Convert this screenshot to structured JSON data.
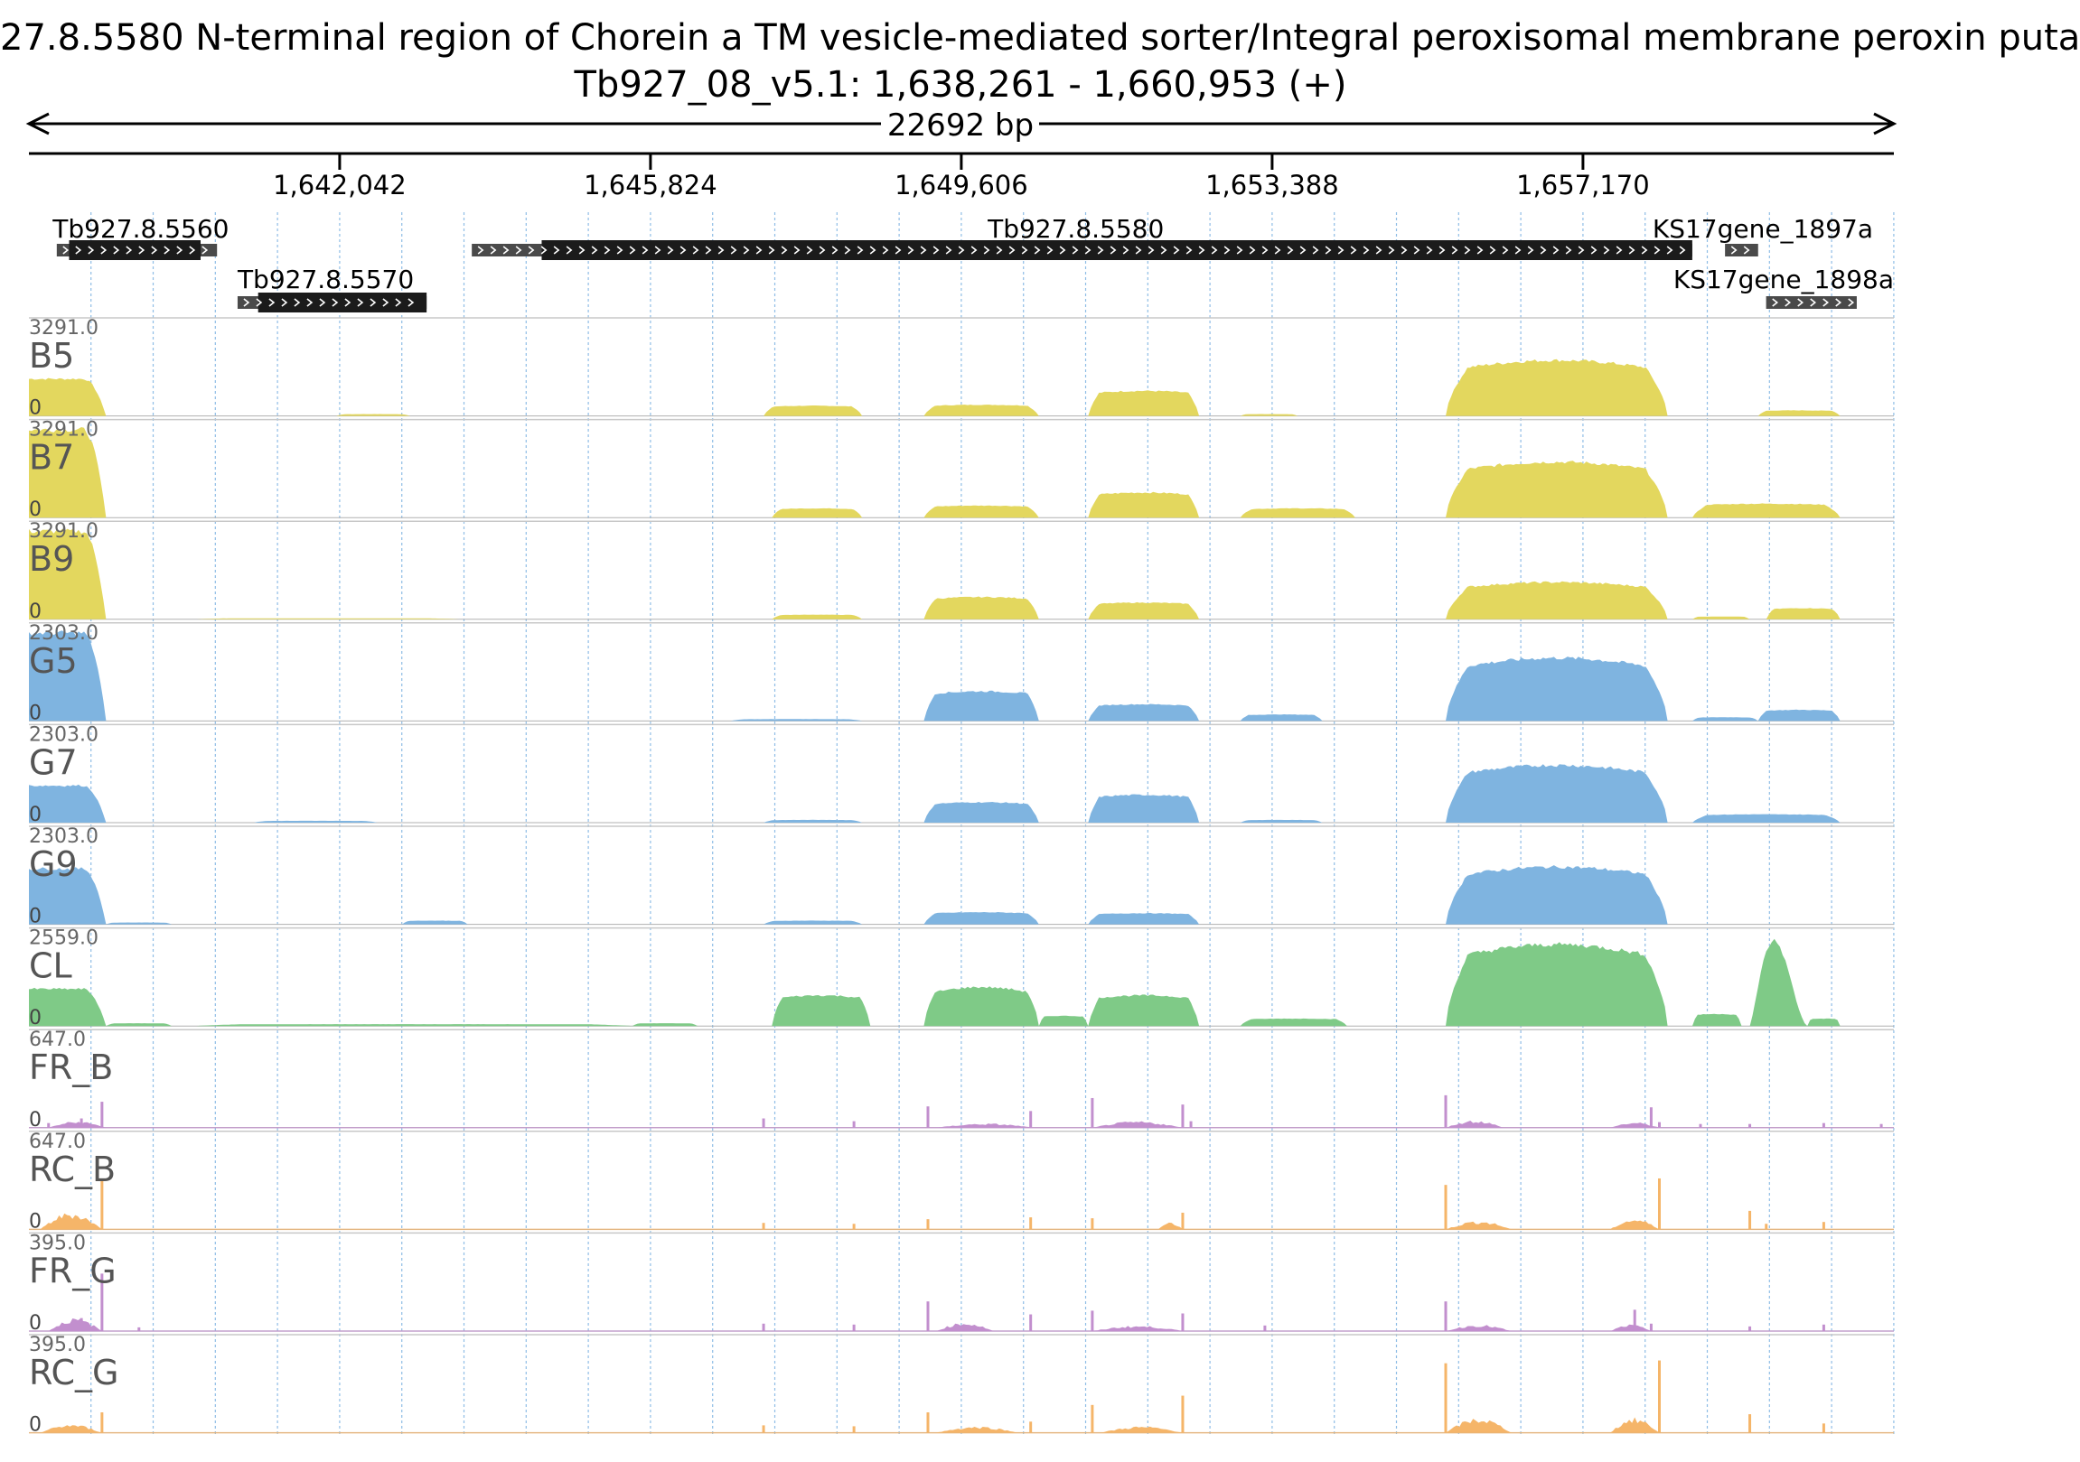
{
  "header": {
    "title": "27.8.5580  N-terminal region of Chorein  a TM vesicle-mediated sorter/Integral peroxisomal membrane peroxin  puta",
    "region": "Tb927_08_v5.1: 1,638,261 - 1,660,953 (+)",
    "span": "22692 bp"
  },
  "chart_data": {
    "type": "area",
    "xlim": [
      1638261,
      1660953
    ],
    "x_ticks": [
      {
        "value": 1642042,
        "label": "1,642,042"
      },
      {
        "value": 1645824,
        "label": "1,645,824"
      },
      {
        "value": 1649606,
        "label": "1,649,606"
      },
      {
        "value": 1653388,
        "label": "1,653,388"
      },
      {
        "value": 1657170,
        "label": "1,657,170"
      }
    ],
    "genes": [
      {
        "name": "Tb927.8.5560",
        "utr": [
          1638600,
          1640550
        ],
        "cds": [
          1638750,
          1640350
        ],
        "row": 0,
        "label_at": 1638550,
        "anchor": "start"
      },
      {
        "name": "Tb927.8.5570",
        "utr": [
          1640800,
          1643100
        ],
        "cds": [
          1641050,
          1643100
        ],
        "row": 1,
        "label_at": 1640800,
        "anchor": "start"
      },
      {
        "name": "Tb927.8.5580",
        "utr": [
          1643650,
          1658500
        ],
        "cds": [
          1644500,
          1658500
        ],
        "row": 0,
        "label_at": 1651000,
        "anchor": "middle"
      },
      {
        "name": "KS17gene_1897a",
        "utr": [
          1658900,
          1659300
        ],
        "cds": [
          1658900,
          1659300
        ],
        "row": 0,
        "label_at": 1660700,
        "anchor": "end"
      },
      {
        "name": "KS17gene_1898a",
        "utr": [
          1659400,
          1660500
        ],
        "cds": [
          1659400,
          1660500
        ],
        "row": 1,
        "label_at": 1660953,
        "anchor": "end"
      }
    ],
    "series": [
      {
        "name": "B5",
        "max_label": "3291.0",
        "min_label": "0",
        "color": "#e3d75e",
        "kind": "coverage",
        "blocks": [
          [
            1638261,
            1639200,
            0.4,
            "cap"
          ],
          [
            1642000,
            1642900,
            0.02,
            "flat"
          ],
          [
            1647200,
            1648400,
            0.11,
            "flat"
          ],
          [
            1649150,
            1650550,
            0.12,
            "flat"
          ],
          [
            1651150,
            1652500,
            0.27,
            "flat"
          ],
          [
            1653000,
            1653700,
            0.02,
            "flat"
          ],
          [
            1655500,
            1658200,
            0.6,
            "bump"
          ],
          [
            1659300,
            1660300,
            0.06,
            "flat"
          ]
        ]
      },
      {
        "name": "B7",
        "max_label": "3291.0",
        "min_label": "0",
        "color": "#e3d75e",
        "kind": "coverage",
        "blocks": [
          [
            1638261,
            1639200,
            0.95,
            "cap"
          ],
          [
            1647300,
            1648400,
            0.1,
            "flat"
          ],
          [
            1649150,
            1650550,
            0.13,
            "flat"
          ],
          [
            1651150,
            1652500,
            0.27,
            "flat"
          ],
          [
            1653000,
            1654400,
            0.1,
            "flat"
          ],
          [
            1655500,
            1658200,
            0.6,
            "bump"
          ],
          [
            1658500,
            1660300,
            0.15,
            "flat"
          ]
        ]
      },
      {
        "name": "B9",
        "max_label": "3291.0",
        "min_label": "0",
        "color": "#e3d75e",
        "kind": "coverage",
        "blocks": [
          [
            1638261,
            1639200,
            0.95,
            "cap"
          ],
          [
            1640300,
            1643500,
            0.01,
            "flat"
          ],
          [
            1647300,
            1648400,
            0.05,
            "flat"
          ],
          [
            1649150,
            1650550,
            0.24,
            "flat"
          ],
          [
            1651150,
            1652500,
            0.18,
            "flat"
          ],
          [
            1655500,
            1658200,
            0.4,
            "bump"
          ],
          [
            1658500,
            1659200,
            0.03,
            "flat"
          ],
          [
            1659400,
            1660300,
            0.12,
            "flat"
          ]
        ]
      },
      {
        "name": "G5",
        "max_label": "2303.0",
        "min_label": "0",
        "color": "#7fb4e0",
        "kind": "coverage",
        "blocks": [
          [
            1638261,
            1639200,
            0.95,
            "cap"
          ],
          [
            1646800,
            1648400,
            0.02,
            "flat"
          ],
          [
            1649150,
            1650550,
            0.32,
            "flat"
          ],
          [
            1651150,
            1652500,
            0.18,
            "flat"
          ],
          [
            1653000,
            1654000,
            0.07,
            "flat"
          ],
          [
            1655500,
            1658200,
            0.68,
            "bump"
          ],
          [
            1658500,
            1659300,
            0.04,
            "flat"
          ],
          [
            1659300,
            1660300,
            0.12,
            "flat"
          ]
        ]
      },
      {
        "name": "G7",
        "max_label": "2303.0",
        "min_label": "0",
        "color": "#7fb4e0",
        "kind": "coverage",
        "blocks": [
          [
            1638261,
            1639200,
            0.4,
            "cap"
          ],
          [
            1641000,
            1642500,
            0.02,
            "flat"
          ],
          [
            1647200,
            1648400,
            0.03,
            "flat"
          ],
          [
            1649150,
            1650550,
            0.22,
            "flat"
          ],
          [
            1651150,
            1652500,
            0.3,
            "flat"
          ],
          [
            1653000,
            1654000,
            0.03,
            "flat"
          ],
          [
            1655500,
            1658200,
            0.62,
            "bump"
          ],
          [
            1658500,
            1660300,
            0.09,
            "flat"
          ]
        ]
      },
      {
        "name": "G9",
        "max_label": "2303.0",
        "min_label": "0",
        "color": "#7fb4e0",
        "kind": "coverage",
        "blocks": [
          [
            1638261,
            1639200,
            0.6,
            "cap"
          ],
          [
            1639200,
            1640000,
            0.02,
            "flat"
          ],
          [
            1642800,
            1643600,
            0.04,
            "flat"
          ],
          [
            1647200,
            1648400,
            0.04,
            "flat"
          ],
          [
            1649150,
            1650550,
            0.13,
            "flat"
          ],
          [
            1651150,
            1652500,
            0.12,
            "flat"
          ],
          [
            1655500,
            1658200,
            0.62,
            "bump"
          ]
        ]
      },
      {
        "name": "CL",
        "max_label": "2559.0",
        "min_label": "0",
        "color": "#7fca87",
        "kind": "coverage",
        "blocks": [
          [
            1638261,
            1639200,
            0.4,
            "cap"
          ],
          [
            1639200,
            1640000,
            0.03,
            "flat"
          ],
          [
            1640300,
            1645600,
            0.02,
            "flat"
          ],
          [
            1645600,
            1646400,
            0.03,
            "flat"
          ],
          [
            1647300,
            1648500,
            0.33,
            "flat"
          ],
          [
            1649150,
            1650550,
            0.42,
            "bump"
          ],
          [
            1650550,
            1651150,
            0.11,
            "flat"
          ],
          [
            1651150,
            1652500,
            0.33,
            "flat"
          ],
          [
            1653000,
            1654300,
            0.08,
            "flat"
          ],
          [
            1655500,
            1658200,
            0.88,
            "bump"
          ],
          [
            1658500,
            1659100,
            0.13,
            "flat"
          ],
          [
            1659200,
            1659900,
            0.92,
            "peak"
          ],
          [
            1659900,
            1660300,
            0.08,
            "flat"
          ]
        ]
      },
      {
        "name": "FR_B",
        "max_label": "647.0",
        "min_label": "0",
        "color": "#c28fce",
        "kind": "spikes",
        "spikes": [
          [
            1638500,
            0.05
          ],
          [
            1638900,
            0.1
          ],
          [
            1639150,
            0.28
          ],
          [
            1647200,
            0.1
          ],
          [
            1648300,
            0.07
          ],
          [
            1649200,
            0.23
          ],
          [
            1650450,
            0.18
          ],
          [
            1651200,
            0.32
          ],
          [
            1652300,
            0.25
          ],
          [
            1652400,
            0.07
          ],
          [
            1655500,
            0.35
          ],
          [
            1658000,
            0.22
          ],
          [
            1658100,
            0.06
          ],
          [
            1658600,
            0.04
          ],
          [
            1659200,
            0.04
          ],
          [
            1660100,
            0.05
          ],
          [
            1660800,
            0.04
          ]
        ],
        "mounds": [
          [
            1638500,
            1639200,
            0.06
          ],
          [
            1649300,
            1650500,
            0.04
          ],
          [
            1651200,
            1652300,
            0.06
          ],
          [
            1655500,
            1656200,
            0.07
          ],
          [
            1657500,
            1658100,
            0.05
          ]
        ]
      },
      {
        "name": "RC_B",
        "max_label": "647.0",
        "min_label": "0",
        "color": "#f5b569",
        "kind": "spikes",
        "spikes": [
          [
            1639150,
            0.55
          ],
          [
            1647200,
            0.07
          ],
          [
            1648300,
            0.06
          ],
          [
            1649200,
            0.11
          ],
          [
            1650450,
            0.13
          ],
          [
            1651200,
            0.12
          ],
          [
            1652300,
            0.18
          ],
          [
            1655500,
            0.48
          ],
          [
            1658100,
            0.55
          ],
          [
            1659200,
            0.2
          ],
          [
            1659400,
            0.06
          ],
          [
            1660100,
            0.08
          ]
        ],
        "mounds": [
          [
            1638400,
            1639150,
            0.16
          ],
          [
            1655500,
            1656300,
            0.08
          ],
          [
            1657500,
            1658100,
            0.1
          ],
          [
            1652000,
            1652300,
            0.07
          ]
        ]
      },
      {
        "name": "FR_G",
        "max_label": "395.0",
        "min_label": "0",
        "color": "#c28fce",
        "kind": "spikes",
        "spikes": [
          [
            1638900,
            0.14
          ],
          [
            1639150,
            0.62
          ],
          [
            1639600,
            0.04
          ],
          [
            1647200,
            0.08
          ],
          [
            1648300,
            0.07
          ],
          [
            1649200,
            0.32
          ],
          [
            1650450,
            0.18
          ],
          [
            1651200,
            0.22
          ],
          [
            1652300,
            0.19
          ],
          [
            1653300,
            0.06
          ],
          [
            1655500,
            0.32
          ],
          [
            1657800,
            0.23
          ],
          [
            1658000,
            0.08
          ],
          [
            1659200,
            0.05
          ],
          [
            1660100,
            0.07
          ]
        ],
        "mounds": [
          [
            1638500,
            1639150,
            0.12
          ],
          [
            1649300,
            1650000,
            0.08
          ],
          [
            1651200,
            1652300,
            0.05
          ],
          [
            1655500,
            1656300,
            0.06
          ],
          [
            1657500,
            1658000,
            0.06
          ]
        ]
      },
      {
        "name": "RC_G",
        "max_label": "395.0",
        "min_label": "0",
        "color": "#f5b569",
        "kind": "spikes",
        "spikes": [
          [
            1639150,
            0.22
          ],
          [
            1647200,
            0.08
          ],
          [
            1648300,
            0.07
          ],
          [
            1649200,
            0.22
          ],
          [
            1650450,
            0.12
          ],
          [
            1651200,
            0.3
          ],
          [
            1652300,
            0.4
          ],
          [
            1655500,
            0.75
          ],
          [
            1658100,
            0.78
          ],
          [
            1659200,
            0.2
          ],
          [
            1660100,
            0.1
          ]
        ],
        "mounds": [
          [
            1638400,
            1639150,
            0.08
          ],
          [
            1649300,
            1650300,
            0.06
          ],
          [
            1651300,
            1652300,
            0.06
          ],
          [
            1655500,
            1656300,
            0.14
          ],
          [
            1657500,
            1658100,
            0.14
          ]
        ]
      }
    ]
  }
}
